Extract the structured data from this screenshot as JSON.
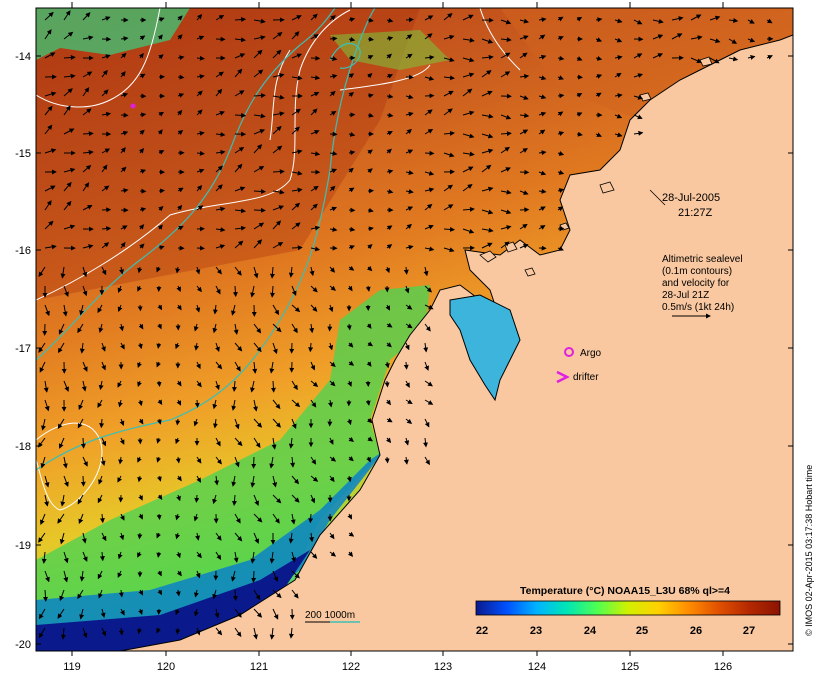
{
  "map": {
    "date_label": "28-Jul-2005",
    "time_label": "21:27Z",
    "legend_lines": [
      "Altimetric sealevel",
      "(0.1m contours)",
      "and velocity for",
      "28-Jul 21Z",
      "0.5m/s (1kt 24h)"
    ],
    "argo_label": "Argo",
    "drifter_label": "drifter",
    "depth_contour_label": "200  1000m",
    "side_credit": "© IMOS 02-Apr-2015 03:17:38 Hobart time",
    "lat_ticks": [
      "-14",
      "-15",
      "-16",
      "-17",
      "-18",
      "-19",
      "-20"
    ],
    "lon_ticks": [
      "119",
      "120",
      "121",
      "122",
      "123",
      "124",
      "125",
      "126"
    ],
    "colorbar": {
      "title": "Temperature (°C) NOAA15_L3U 68% ql>=4",
      "ticks": [
        "22",
        "23",
        "24",
        "25",
        "26",
        "27"
      ],
      "stops": [
        "#0a1a8c",
        "#0050ff",
        "#00b4ff",
        "#00e6b4",
        "#50ff50",
        "#d2f000",
        "#ffd000",
        "#ff8c00",
        "#e05000",
        "#b42800",
        "#8c1400"
      ]
    },
    "colors": {
      "land": "#f9c8a0",
      "sea_warm": "#c8501e",
      "contour": "#ffffff",
      "isobath": "#3cbfb4",
      "marker": "#e020e0"
    }
  }
}
